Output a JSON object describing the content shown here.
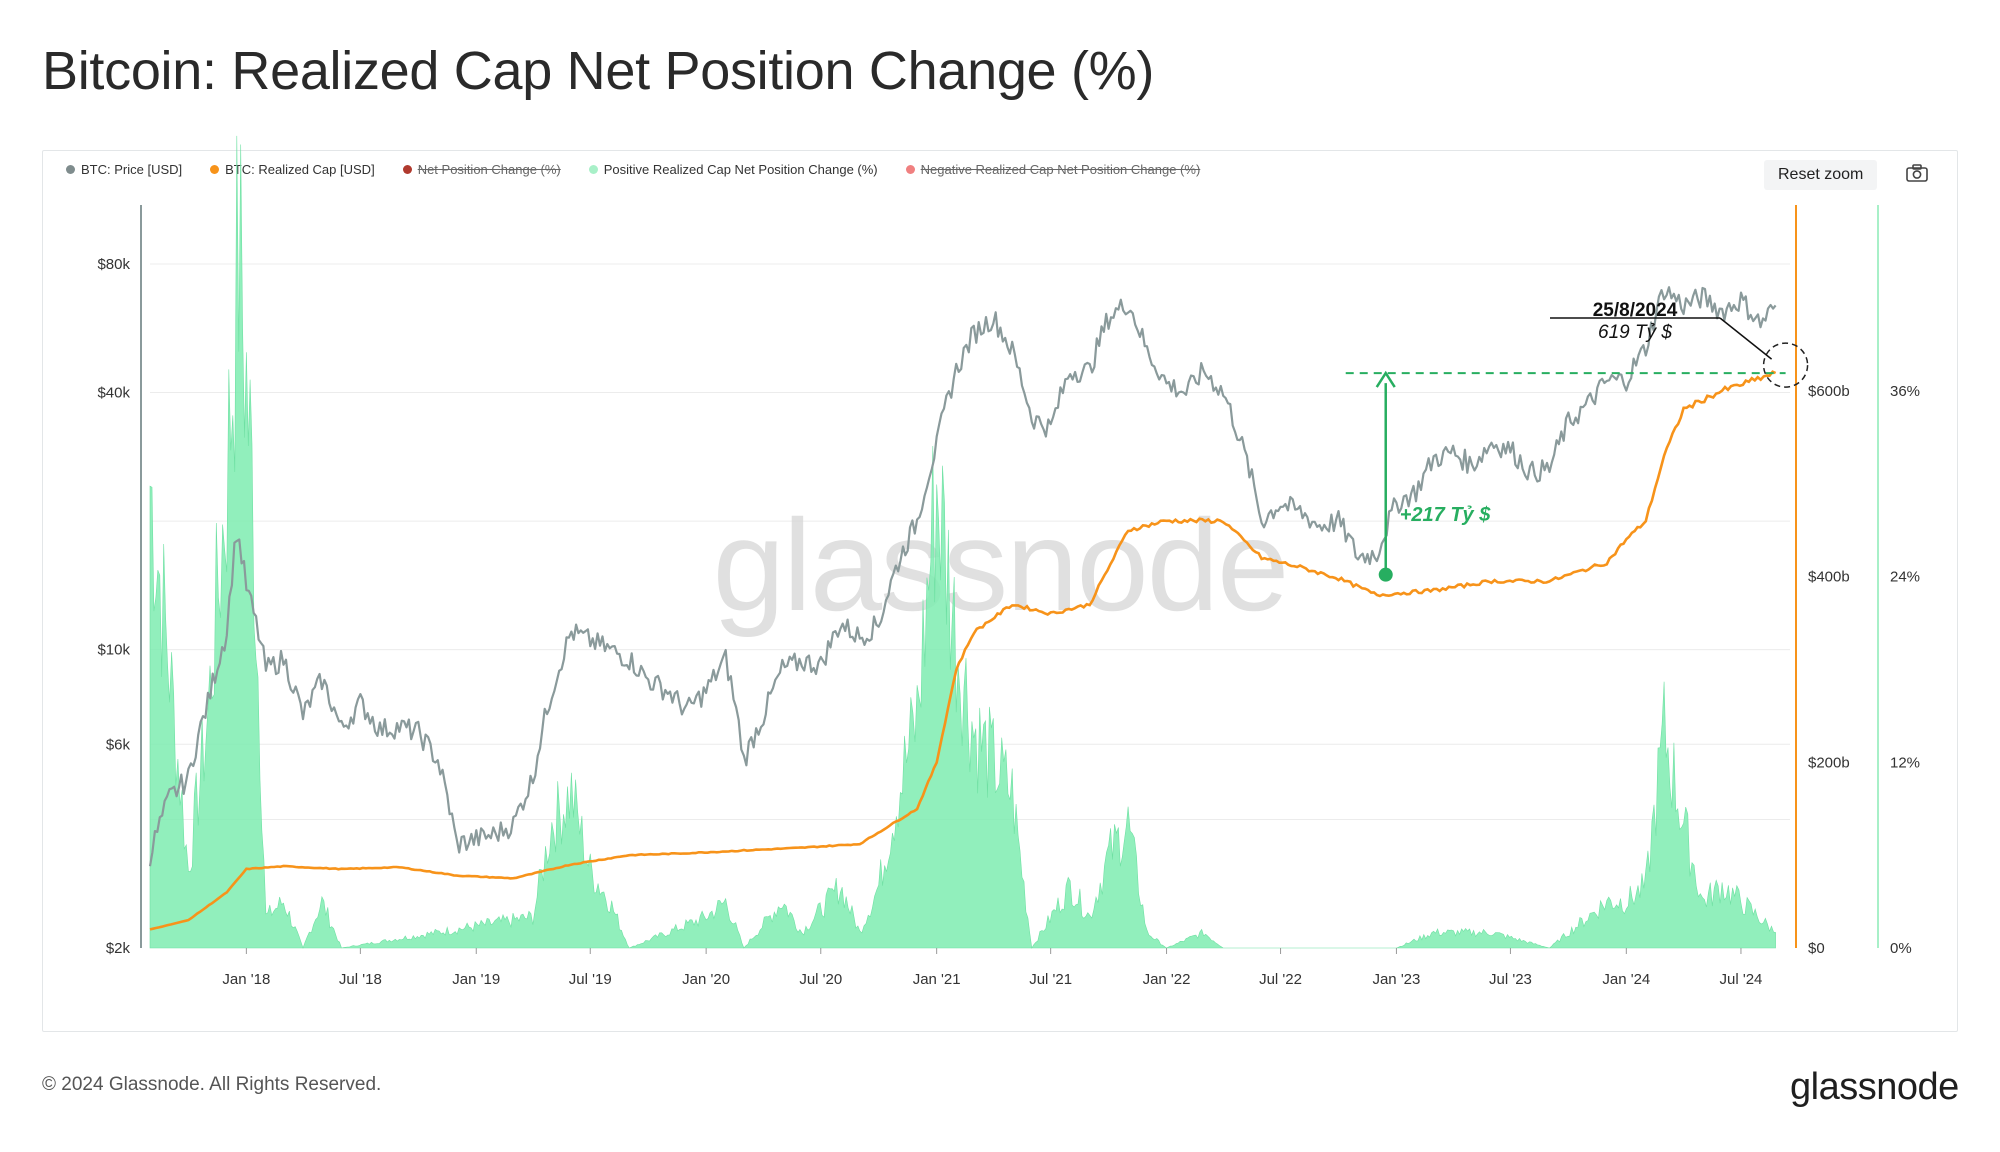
{
  "title": "Bitcoin: Realized Cap Net Position Change (%)",
  "legend": [
    {
      "label": "BTC: Price [USD]",
      "color": "#7f8c8d",
      "enabled": true
    },
    {
      "label": "BTC: Realized Cap [USD]",
      "color": "#f7931a",
      "enabled": true
    },
    {
      "label": "Net Position Change (%)",
      "color": "#b03a2e",
      "enabled": false
    },
    {
      "label": "Positive Realized Cap Net Position Change (%)",
      "color": "#a8f0c8",
      "enabled": true
    },
    {
      "label": "Negative Realized Cap Net Position Change (%)",
      "color": "#f08080",
      "enabled": false
    }
  ],
  "toolbar": {
    "reset_zoom": "Reset zoom",
    "camera_icon": "camera-icon"
  },
  "watermark": "glassnode",
  "annotations": {
    "date": "25/8/2024",
    "value": "619 Tỷ $",
    "gain": "+217 Tỷ $"
  },
  "footer": {
    "copyright": "© 2024 Glassnode. All Rights Reserved.",
    "logo": "glassnode"
  },
  "colors": {
    "price": "#8a9a9b",
    "realized_cap": "#f7931a",
    "positive_area": "#7eecb0",
    "annotation_green": "#27ae60"
  },
  "chart_data": {
    "type": "line",
    "x_ticks": [
      "Jan '18",
      "Jul '18",
      "Jan '19",
      "Jul '19",
      "Jan '20",
      "Jul '20",
      "Jan '21",
      "Jul '21",
      "Jan '22",
      "Jul '22",
      "Jan '23",
      "Jul '23",
      "Jan '24",
      "Jul '24"
    ],
    "y_left_ticks": [
      "$80k",
      "$40k",
      "$10k",
      "$6k",
      "$2k"
    ],
    "y_right_ticks": [
      "$600b",
      "$400b",
      "$200b",
      "$0"
    ],
    "y_right2_ticks": [
      "36%",
      "24%",
      "12%",
      "0%"
    ],
    "y_left_scale": "log",
    "series": [
      {
        "name": "BTC: Price [USD]",
        "axis": "left",
        "points": [
          [
            "2017-08-01",
            3300
          ],
          [
            "2017-09-01",
            4500
          ],
          [
            "2017-10-01",
            5000
          ],
          [
            "2017-11-01",
            7500
          ],
          [
            "2017-12-01",
            11000
          ],
          [
            "2017-12-17",
            19000
          ],
          [
            "2018-01-01",
            14000
          ],
          [
            "2018-02-01",
            9000
          ],
          [
            "2018-03-01",
            9500
          ],
          [
            "2018-04-01",
            7000
          ],
          [
            "2018-05-01",
            8500
          ],
          [
            "2018-06-01",
            6500
          ],
          [
            "2018-07-01",
            7500
          ],
          [
            "2018-08-01",
            6500
          ],
          [
            "2018-09-01",
            6600
          ],
          [
            "2018-10-01",
            6400
          ],
          [
            "2018-11-01",
            5500
          ],
          [
            "2018-12-01",
            3500
          ],
          [
            "2019-01-01",
            3600
          ],
          [
            "2019-02-01",
            3700
          ],
          [
            "2019-03-01",
            3900
          ],
          [
            "2019-04-01",
            5000
          ],
          [
            "2019-05-01",
            8000
          ],
          [
            "2019-06-01",
            11000
          ],
          [
            "2019-07-01",
            10500
          ],
          [
            "2019-08-01",
            10000
          ],
          [
            "2019-09-01",
            9500
          ],
          [
            "2019-10-01",
            8500
          ],
          [
            "2019-11-01",
            8000
          ],
          [
            "2019-12-01",
            7200
          ],
          [
            "2020-01-01",
            8000
          ],
          [
            "2020-02-01",
            9500
          ],
          [
            "2020-03-01",
            5500
          ],
          [
            "2020-04-01",
            7000
          ],
          [
            "2020-05-01",
            9000
          ],
          [
            "2020-06-01",
            9400
          ],
          [
            "2020-07-01",
            9200
          ],
          [
            "2020-08-01",
            11500
          ],
          [
            "2020-09-01",
            10700
          ],
          [
            "2020-10-01",
            11500
          ],
          [
            "2020-11-01",
            16000
          ],
          [
            "2020-12-01",
            20000
          ],
          [
            "2021-01-01",
            30000
          ],
          [
            "2021-02-01",
            45000
          ],
          [
            "2021-03-01",
            55000
          ],
          [
            "2021-04-01",
            60000
          ],
          [
            "2021-05-01",
            50000
          ],
          [
            "2021-06-01",
            35000
          ],
          [
            "2021-07-01",
            33000
          ],
          [
            "2021-08-01",
            45000
          ],
          [
            "2021-09-01",
            45000
          ],
          [
            "2021-10-01",
            60000
          ],
          [
            "2021-11-01",
            65000
          ],
          [
            "2021-12-01",
            50000
          ],
          [
            "2022-01-01",
            42000
          ],
          [
            "2022-02-01",
            40000
          ],
          [
            "2022-03-01",
            45000
          ],
          [
            "2022-04-01",
            40000
          ],
          [
            "2022-05-01",
            30000
          ],
          [
            "2022-06-01",
            20000
          ],
          [
            "2022-07-01",
            22000
          ],
          [
            "2022-08-01",
            21000
          ],
          [
            "2022-09-01",
            19500
          ],
          [
            "2022-10-01",
            20000
          ],
          [
            "2022-11-01",
            16500
          ],
          [
            "2022-12-01",
            16800
          ],
          [
            "2023-01-01",
            22000
          ],
          [
            "2023-02-01",
            23500
          ],
          [
            "2023-03-01",
            28000
          ],
          [
            "2023-04-01",
            29000
          ],
          [
            "2023-05-01",
            27000
          ],
          [
            "2023-06-01",
            30500
          ],
          [
            "2023-07-01",
            29500
          ],
          [
            "2023-08-01",
            26000
          ],
          [
            "2023-09-01",
            26500
          ],
          [
            "2023-10-01",
            34000
          ],
          [
            "2023-11-01",
            37500
          ],
          [
            "2023-12-01",
            42500
          ],
          [
            "2024-01-01",
            43000
          ],
          [
            "2024-02-01",
            51000
          ],
          [
            "2024-03-01",
            70000
          ],
          [
            "2024-04-01",
            64000
          ],
          [
            "2024-05-01",
            67000
          ],
          [
            "2024-06-01",
            62000
          ],
          [
            "2024-07-01",
            66000
          ],
          [
            "2024-08-01",
            58000
          ],
          [
            "2024-08-25",
            64000
          ]
        ]
      },
      {
        "name": "BTC: Realized Cap [USD]",
        "axis": "right",
        "points": [
          [
            "2017-08-01",
            20
          ],
          [
            "2017-10-01",
            30
          ],
          [
            "2017-12-01",
            60
          ],
          [
            "2018-01-01",
            85
          ],
          [
            "2018-03-01",
            88
          ],
          [
            "2018-06-01",
            85
          ],
          [
            "2018-09-01",
            87
          ],
          [
            "2018-12-01",
            78
          ],
          [
            "2019-03-01",
            75
          ],
          [
            "2019-06-01",
            90
          ],
          [
            "2019-09-01",
            100
          ],
          [
            "2019-12-01",
            102
          ],
          [
            "2020-03-01",
            105
          ],
          [
            "2020-06-01",
            108
          ],
          [
            "2020-09-01",
            112
          ],
          [
            "2020-12-01",
            150
          ],
          [
            "2021-01-01",
            200
          ],
          [
            "2021-02-01",
            300
          ],
          [
            "2021-03-01",
            340
          ],
          [
            "2021-05-01",
            370
          ],
          [
            "2021-07-01",
            360
          ],
          [
            "2021-09-01",
            370
          ],
          [
            "2021-11-01",
            450
          ],
          [
            "2022-01-01",
            460
          ],
          [
            "2022-04-01",
            460
          ],
          [
            "2022-06-01",
            420
          ],
          [
            "2022-08-01",
            410
          ],
          [
            "2022-10-01",
            398
          ],
          [
            "2022-12-01",
            380
          ],
          [
            "2023-03-01",
            385
          ],
          [
            "2023-06-01",
            395
          ],
          [
            "2023-09-01",
            395
          ],
          [
            "2023-12-01",
            415
          ],
          [
            "2024-01-01",
            440
          ],
          [
            "2024-02-01",
            460
          ],
          [
            "2024-03-01",
            530
          ],
          [
            "2024-04-01",
            580
          ],
          [
            "2024-06-01",
            600
          ],
          [
            "2024-08-25",
            619
          ]
        ]
      },
      {
        "name": "Positive Realized Cap Net Position Change (%)",
        "axis": "right2",
        "type": "area",
        "points": [
          [
            "2017-08-01",
            30
          ],
          [
            "2017-09-01",
            18
          ],
          [
            "2017-10-01",
            5
          ],
          [
            "2017-11-01",
            15
          ],
          [
            "2017-12-01",
            30
          ],
          [
            "2017-12-20",
            45
          ],
          [
            "2018-01-10",
            30
          ],
          [
            "2018-02-01",
            2
          ],
          [
            "2018-03-01",
            3
          ],
          [
            "2018-04-01",
            0
          ],
          [
            "2018-05-01",
            3
          ],
          [
            "2018-06-01",
            0
          ],
          [
            "2019-04-01",
            2
          ],
          [
            "2019-05-01",
            8
          ],
          [
            "2019-06-01",
            10
          ],
          [
            "2019-07-01",
            5
          ],
          [
            "2019-08-01",
            3
          ],
          [
            "2019-09-01",
            0
          ],
          [
            "2020-01-01",
            2
          ],
          [
            "2020-02-01",
            3
          ],
          [
            "2020-03-01",
            0
          ],
          [
            "2020-05-01",
            3
          ],
          [
            "2020-06-01",
            1
          ],
          [
            "2020-08-01",
            4
          ],
          [
            "2020-09-01",
            1
          ],
          [
            "2020-10-01",
            4
          ],
          [
            "2020-11-01",
            10
          ],
          [
            "2020-12-01",
            15
          ],
          [
            "2021-01-01",
            30
          ],
          [
            "2021-02-01",
            20
          ],
          [
            "2021-03-01",
            14
          ],
          [
            "2021-04-01",
            12
          ],
          [
            "2021-05-01",
            10
          ],
          [
            "2021-06-01",
            0
          ],
          [
            "2021-08-01",
            4
          ],
          [
            "2021-09-01",
            2
          ],
          [
            "2021-10-01",
            6
          ],
          [
            "2021-11-01",
            8
          ],
          [
            "2021-12-01",
            1
          ],
          [
            "2022-01-01",
            0
          ],
          [
            "2022-03-01",
            1
          ],
          [
            "2022-04-01",
            0
          ],
          [
            "2023-01-01",
            0
          ],
          [
            "2023-03-01",
            1
          ],
          [
            "2023-06-01",
            1
          ],
          [
            "2023-09-01",
            0
          ],
          [
            "2023-11-01",
            2
          ],
          [
            "2023-12-01",
            3
          ],
          [
            "2024-01-01",
            3
          ],
          [
            "2024-02-01",
            4
          ],
          [
            "2024-03-01",
            14
          ],
          [
            "2024-04-01",
            8
          ],
          [
            "2024-05-01",
            3
          ],
          [
            "2024-06-01",
            4
          ],
          [
            "2024-07-01",
            3
          ],
          [
            "2024-08-25",
            1
          ]
        ]
      }
    ]
  }
}
